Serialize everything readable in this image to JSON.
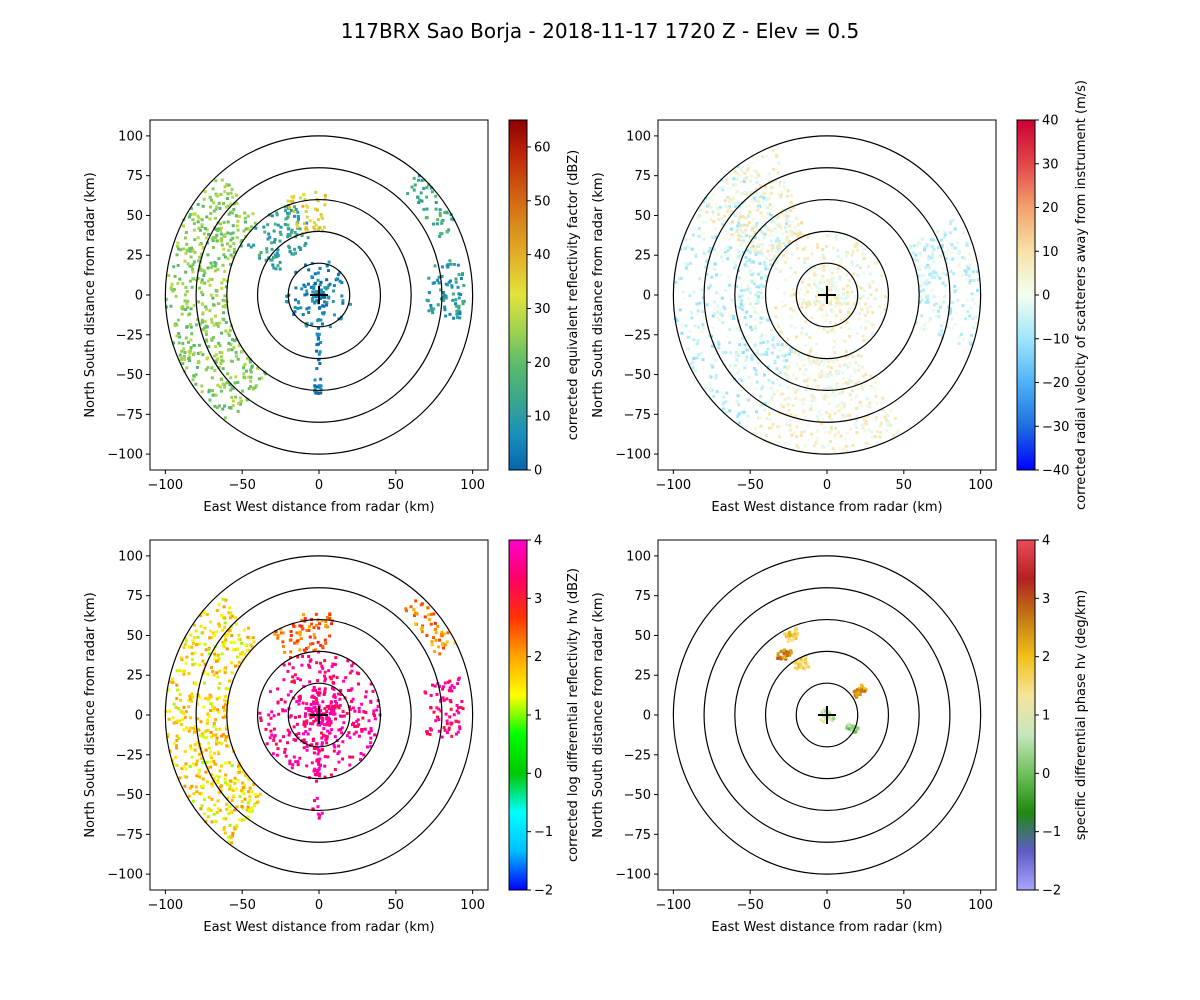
{
  "figure": {
    "title": "117BRX Sao Borja - 2018-11-17 1720 Z -  Elev = 0.5"
  },
  "chart_data": [
    {
      "type": "heatmap",
      "id": "reflectivity",
      "xlabel": "East West distance from radar (km)",
      "ylabel": "North South distance from radar (km)",
      "xlim": [
        -110,
        110
      ],
      "ylim": [
        -110,
        110
      ],
      "xticks": [
        -100,
        -50,
        0,
        50,
        100
      ],
      "yticks": [
        -100,
        -75,
        -50,
        -25,
        0,
        25,
        50,
        75,
        100
      ],
      "range_rings_km": [
        20,
        40,
        60,
        80,
        100
      ],
      "radar_marker": [
        0,
        0
      ],
      "colorbar": {
        "label": "corrected equivalent reflectivity factor (dBZ)",
        "min": 0,
        "max": 65,
        "ticks": [
          0,
          10,
          20,
          30,
          40,
          50,
          60
        ],
        "colors": [
          "#0566ad",
          "#1b8ebd",
          "#3aa68c",
          "#5bbb6a",
          "#9fd44f",
          "#e2e33c",
          "#e3b52a",
          "#d98a1c",
          "#cf5a12",
          "#bd2608",
          "#8b0000"
        ]
      },
      "echo_regions": [
        {
          "name": "western-band",
          "az_deg": [
            215,
            320
          ],
          "range_km": [
            60,
            100
          ],
          "level": 24
        },
        {
          "name": "central-echo",
          "az_deg": [
            0,
            360
          ],
          "range_km": [
            0,
            22
          ],
          "level": 6
        },
        {
          "name": "northwest-cluster",
          "az_deg": [
            300,
            350
          ],
          "range_km": [
            30,
            60
          ],
          "level": 12
        },
        {
          "name": "northern-core",
          "az_deg": [
            340,
            5
          ],
          "range_km": [
            40,
            65
          ],
          "level": 34
        },
        {
          "name": "northeast-blobs",
          "az_deg": [
            40,
            65
          ],
          "range_km": [
            85,
            100
          ],
          "level": 14
        },
        {
          "name": "east-blobs",
          "az_deg": [
            75,
            100
          ],
          "range_km": [
            70,
            95
          ],
          "level": 10
        },
        {
          "name": "south-spoke",
          "az_deg": [
            178,
            183
          ],
          "range_km": [
            20,
            63
          ],
          "level": 5
        }
      ]
    },
    {
      "type": "heatmap",
      "id": "velocity",
      "xlabel": "East West distance from radar (km)",
      "ylabel": "North South distance from radar (km)",
      "xlim": [
        -110,
        110
      ],
      "ylim": [
        -110,
        110
      ],
      "xticks": [
        -100,
        -50,
        0,
        50,
        100
      ],
      "yticks": [
        -100,
        -75,
        -50,
        -25,
        0,
        25,
        50,
        75,
        100
      ],
      "range_rings_km": [
        20,
        40,
        60,
        80,
        100
      ],
      "radar_marker": [
        0,
        0
      ],
      "colorbar": {
        "label": "corrected radial velocity of scatterers away from instrument (m/s)",
        "min": -40,
        "max": 40,
        "ticks": [
          -40,
          -30,
          -20,
          -10,
          0,
          10,
          20,
          30,
          40
        ],
        "colors": [
          "#0000ff",
          "#1e6fe0",
          "#4fb2f5",
          "#9fe6fb",
          "#f4fff0",
          "#f8e2a8",
          "#f2a26d",
          "#e2474a",
          "#cc0033"
        ]
      },
      "echo_regions": [
        {
          "name": "western-outbound",
          "az_deg": [
            210,
            330
          ],
          "range_km": [
            40,
            100
          ],
          "level": -5
        },
        {
          "name": "northwest-inbound",
          "az_deg": [
            300,
            340
          ],
          "range_km": [
            40,
            100
          ],
          "level": 4
        },
        {
          "name": "near-field",
          "az_deg": [
            0,
            360
          ],
          "range_km": [
            0,
            40
          ],
          "level": 3
        },
        {
          "name": "east-outbound",
          "az_deg": [
            60,
            110
          ],
          "range_km": [
            60,
            100
          ],
          "level": -4
        },
        {
          "name": "south-inbound",
          "az_deg": [
            150,
            210
          ],
          "range_km": [
            40,
            100
          ],
          "level": 3
        }
      ]
    },
    {
      "type": "heatmap",
      "id": "zdr",
      "xlabel": "East West distance from radar (km)",
      "ylabel": "North South distance from radar (km)",
      "xlim": [
        -110,
        110
      ],
      "ylim": [
        -110,
        110
      ],
      "xticks": [
        -100,
        -50,
        0,
        50,
        100
      ],
      "yticks": [
        -100,
        -75,
        -50,
        -25,
        0,
        25,
        50,
        75,
        100
      ],
      "range_rings_km": [
        20,
        40,
        60,
        80,
        100
      ],
      "radar_marker": [
        0,
        0
      ],
      "colorbar": {
        "label": "corrected log differential reflectivity hv (dBZ)",
        "min": -2,
        "max": 4,
        "ticks": [
          -2,
          -1,
          0,
          1,
          2,
          3,
          4
        ],
        "colors": [
          "#0000ff",
          "#00bfff",
          "#00ffff",
          "#00c800",
          "#00ff00",
          "#ffff00",
          "#ffa500",
          "#ff3300",
          "#ff0066",
          "#ff00cc"
        ]
      },
      "echo_regions": [
        {
          "name": "western-band",
          "az_deg": [
            215,
            320
          ],
          "range_km": [
            60,
            100
          ],
          "level": 1.6
        },
        {
          "name": "central-echo",
          "az_deg": [
            0,
            360
          ],
          "range_km": [
            0,
            40
          ],
          "level": 3.6
        },
        {
          "name": "northern-core",
          "az_deg": [
            330,
            10
          ],
          "range_km": [
            40,
            65
          ],
          "level": 2.5
        },
        {
          "name": "south-spoke",
          "az_deg": [
            178,
            184
          ],
          "range_km": [
            20,
            65
          ],
          "level": 3.8
        },
        {
          "name": "northeast-blobs",
          "az_deg": [
            40,
            65
          ],
          "range_km": [
            85,
            100
          ],
          "level": 2.2
        },
        {
          "name": "east-blobs",
          "az_deg": [
            75,
            100
          ],
          "range_km": [
            70,
            95
          ],
          "level": 3.5
        }
      ]
    },
    {
      "type": "heatmap",
      "id": "kdp",
      "xlabel": "East West distance from radar (km)",
      "ylabel": "North South distance from radar (km)",
      "xlim": [
        -110,
        110
      ],
      "ylim": [
        -110,
        110
      ],
      "xticks": [
        -100,
        -50,
        0,
        50,
        100
      ],
      "yticks": [
        -100,
        -75,
        -50,
        -25,
        0,
        25,
        50,
        75,
        100
      ],
      "range_rings_km": [
        20,
        40,
        60,
        80,
        100
      ],
      "radar_marker": [
        0,
        0
      ],
      "colorbar": {
        "label": "specific differential phase hv (deg/km)",
        "min": -2,
        "max": 4,
        "ticks": [
          -2,
          -1,
          0,
          1,
          2,
          3,
          4
        ],
        "colors": [
          "#aaa5ff",
          "#5e5cc4",
          "#208a10",
          "#6ec15b",
          "#c8e6c0",
          "#f5e49a",
          "#f2c019",
          "#c37a14",
          "#b22222",
          "#ee4a5c"
        ]
      },
      "echo_regions": [
        {
          "name": "north-patch",
          "az_deg": [
            330,
            340
          ],
          "range_km": [
            52,
            58
          ],
          "level": 1.8
        },
        {
          "name": "northwest-patch",
          "az_deg": [
            318,
            330
          ],
          "range_km": [
            44,
            50
          ],
          "level": 2.6
        },
        {
          "name": "northwest-patch-2",
          "az_deg": [
            325,
            340
          ],
          "range_km": [
            32,
            40
          ],
          "level": 1.6
        },
        {
          "name": "east-patch",
          "az_deg": [
            50,
            60
          ],
          "range_km": [
            22,
            30
          ],
          "level": 2.4
        },
        {
          "name": "southeast-patch",
          "az_deg": [
            112,
            122
          ],
          "range_km": [
            15,
            22
          ],
          "level": 0.4
        },
        {
          "name": "center-patch",
          "az_deg": [
            0,
            360
          ],
          "range_km": [
            0,
            5
          ],
          "level": 0.8
        }
      ]
    }
  ]
}
